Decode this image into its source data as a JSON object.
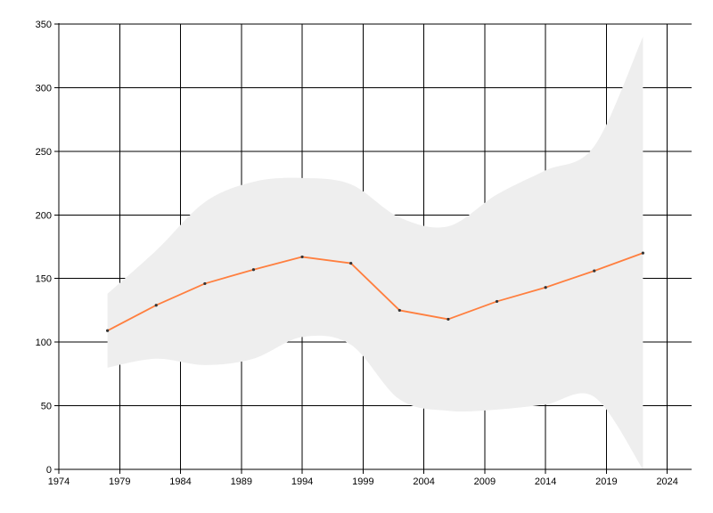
{
  "chart_data": {
    "type": "line",
    "title": "",
    "xlabel": "",
    "ylabel": "",
    "xlim": [
      1974,
      2026
    ],
    "ylim": [
      0,
      350
    ],
    "x_ticks": [
      1974,
      1979,
      1984,
      1989,
      1994,
      1999,
      2004,
      2009,
      2014,
      2019,
      2024
    ],
    "y_ticks": [
      0,
      50,
      100,
      150,
      200,
      250,
      300,
      350
    ],
    "grid": true,
    "legend": "none",
    "series": [
      {
        "x": [
          1978,
          1982,
          1986,
          1990,
          1994,
          1998,
          2002,
          2006,
          2010,
          2014,
          2018,
          2022
        ],
        "y": [
          109,
          129,
          146,
          157,
          167,
          162,
          125,
          118,
          132,
          143,
          156,
          170
        ],
        "color": "#ff7f3f",
        "marker_color": "#333333"
      }
    ],
    "band": {
      "x": [
        1978,
        1982,
        1986,
        1990,
        1994,
        1998,
        2002,
        2006,
        2010,
        2014,
        2018,
        2022
      ],
      "upper": [
        138,
        172,
        210,
        226,
        229,
        224,
        198,
        191,
        216,
        235,
        254,
        340
      ],
      "lower": [
        80,
        87,
        82,
        87,
        104,
        98,
        55,
        46,
        47,
        51,
        57,
        0
      ],
      "color": "#eeeeee"
    }
  }
}
